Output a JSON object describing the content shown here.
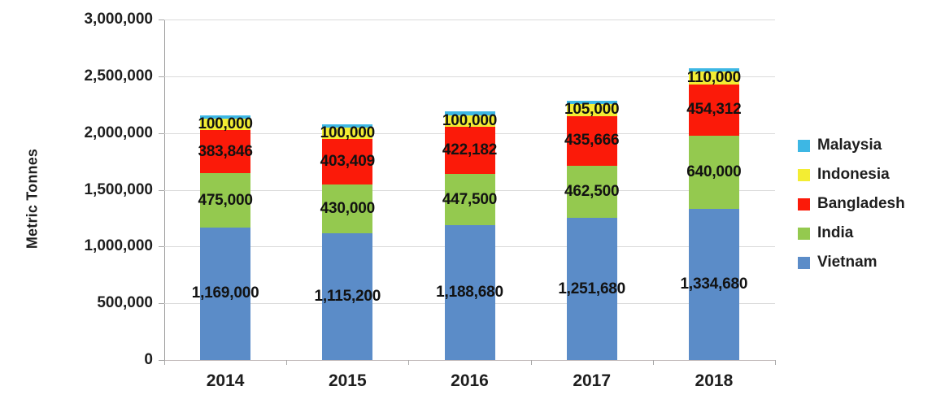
{
  "chart_data": {
    "type": "bar",
    "stacked": true,
    "title": "",
    "xlabel": "",
    "ylabel": "Metric Tonnes",
    "ylim": [
      0,
      3000000
    ],
    "ytick_interval": 500000,
    "yticks": [
      "3,000,000",
      "2,500,000",
      "2,000,000",
      "1,500,000",
      "1,000,000",
      "500,000",
      "0"
    ],
    "grid": true,
    "legend_position": "right",
    "legend_order": [
      "Malaysia",
      "Indonesia",
      "Bangladesh",
      "India",
      "Vietnam"
    ],
    "categories": [
      "2014",
      "2015",
      "2016",
      "2017",
      "2018"
    ],
    "series": [
      {
        "name": "Vietnam",
        "color": "#5B8CC8",
        "labeled": true,
        "values": [
          1169000,
          1115200,
          1188680,
          1251680,
          1334680
        ]
      },
      {
        "name": "India",
        "color": "#94C94F",
        "labeled": true,
        "values": [
          475000,
          430000,
          447500,
          462500,
          640000
        ]
      },
      {
        "name": "Bangladesh",
        "color": "#FB1A09",
        "labeled": true,
        "values": [
          383846,
          403409,
          422182,
          435666,
          454312
        ]
      },
      {
        "name": "Indonesia",
        "color": "#F3ED33",
        "labeled": true,
        "values": [
          100000,
          100000,
          100000,
          105000,
          110000
        ]
      },
      {
        "name": "Malaysia",
        "color": "#3DB7E4",
        "labeled": false,
        "values": [
          30000,
          30000,
          30000,
          30000,
          30000
        ],
        "note": "Malaysia segments are visible as thin slivers with no data labels; values estimated from pixel height (~30,000)"
      }
    ]
  }
}
